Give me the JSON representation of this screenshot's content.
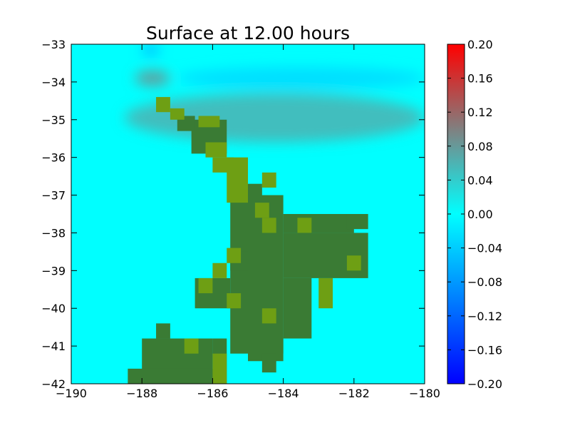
{
  "chart_data": {
    "type": "heatmap",
    "title": "Surface at 12.00 hours",
    "xlabel": "",
    "ylabel": "",
    "xlim": [
      -190,
      -180
    ],
    "ylim": [
      -42,
      -33
    ],
    "x_ticks": [
      "−190",
      "−188",
      "−186",
      "−184",
      "−182",
      "−180"
    ],
    "x_tick_values": [
      -190,
      -188,
      -186,
      -184,
      -182,
      -180
    ],
    "y_ticks": [
      "−33",
      "−34",
      "−35",
      "−36",
      "−37",
      "−38",
      "−39",
      "−40",
      "−41",
      "−42"
    ],
    "y_tick_values": [
      -33,
      -34,
      -35,
      -36,
      -37,
      -38,
      -39,
      -40,
      -41,
      -42
    ],
    "grid": false,
    "colorbar": {
      "range": [
        -0.2,
        0.2
      ],
      "tick_labels": [
        "0.20",
        "0.16",
        "0.12",
        "0.08",
        "0.04",
        "0.00",
        "−0.04",
        "−0.08",
        "−0.12",
        "−0.16",
        "−0.20"
      ],
      "tick_values": [
        0.2,
        0.16,
        0.12,
        0.08,
        0.04,
        0.0,
        -0.04,
        -0.08,
        -0.12,
        -0.16,
        -0.2
      ],
      "colors": [
        "#0000ff",
        "#00ffff",
        "#808080",
        "#ff0000"
      ]
    },
    "field": {
      "background_value": 0.0,
      "bands": [
        {
          "value": -0.03,
          "lon": [
            -187.0,
            -180.0
          ],
          "lat": [
            -34.2,
            -33.6
          ]
        },
        {
          "value": 0.06,
          "lon": [
            -188.5,
            -180.0
          ],
          "lat": [
            -35.6,
            -34.3
          ]
        },
        {
          "value": 0.09,
          "lon": [
            -188.2,
            -187.2
          ],
          "lat": [
            -34.1,
            -33.7
          ]
        },
        {
          "value": -0.06,
          "lon": [
            -188.0,
            -187.5
          ],
          "lat": [
            -33.3,
            -33.0
          ]
        }
      ]
    },
    "land_colors": {
      "land": "#3a7b34",
      "coast": "#6e9f14",
      "edge": "#8bb30a"
    },
    "land_cells": [
      {
        "lon": [
          -185.5,
          -184.0
        ],
        "lat": [
          -41.2,
          -37.0
        ]
      },
      {
        "lon": [
          -184.0,
          -182.0
        ],
        "lat": [
          -38.0,
          -37.5
        ]
      },
      {
        "lon": [
          -184.0,
          -181.6
        ],
        "lat": [
          -39.2,
          -38.0
        ]
      },
      {
        "lon": [
          -184.0,
          -183.2
        ],
        "lat": [
          -40.8,
          -39.2
        ]
      },
      {
        "lon": [
          -182.2,
          -181.6
        ],
        "lat": [
          -37.9,
          -37.5
        ]
      },
      {
        "lon": [
          -185.2,
          -184.6
        ],
        "lat": [
          -37.1,
          -36.7
        ]
      },
      {
        "lon": [
          -186.5,
          -185.5
        ],
        "lat": [
          -40.0,
          -39.2
        ]
      },
      {
        "lon": [
          -185.5,
          -185.0
        ],
        "lat": [
          -39.0,
          -38.5
        ]
      },
      {
        "lon": [
          -185.0,
          -184.0
        ],
        "lat": [
          -41.4,
          -40.8
        ]
      },
      {
        "lon": [
          -184.6,
          -184.2
        ],
        "lat": [
          -41.7,
          -41.2
        ]
      },
      {
        "lon": [
          -188.0,
          -186.0
        ],
        "lat": [
          -41.8,
          -40.8
        ]
      },
      {
        "lon": [
          -188.4,
          -185.6
        ],
        "lat": [
          -42.0,
          -41.6
        ]
      },
      {
        "lon": [
          -187.6,
          -187.2
        ],
        "lat": [
          -40.8,
          -40.4
        ]
      },
      {
        "lon": [
          -186.0,
          -185.6
        ],
        "lat": [
          -41.6,
          -40.8
        ]
      },
      {
        "lon": [
          -186.6,
          -185.6
        ],
        "lat": [
          -35.9,
          -35.0
        ]
      },
      {
        "lon": [
          -187.0,
          -186.5
        ],
        "lat": [
          -35.3,
          -34.9
        ]
      }
    ],
    "coast_cells": [
      {
        "lon": [
          -185.6,
          -185.0
        ],
        "lat": [
          -37.2,
          -36.0
        ]
      },
      {
        "lon": [
          -186.0,
          -185.4
        ],
        "lat": [
          -36.4,
          -36.0
        ]
      },
      {
        "lon": [
          -184.6,
          -184.2
        ],
        "lat": [
          -36.8,
          -36.4
        ]
      },
      {
        "lon": [
          -184.8,
          -184.4
        ],
        "lat": [
          -37.6,
          -37.2
        ]
      },
      {
        "lon": [
          -184.6,
          -184.2
        ],
        "lat": [
          -38.0,
          -37.6
        ]
      },
      {
        "lon": [
          -183.6,
          -183.2
        ],
        "lat": [
          -38.0,
          -37.6
        ]
      },
      {
        "lon": [
          -182.2,
          -181.8
        ],
        "lat": [
          -39.0,
          -38.6
        ]
      },
      {
        "lon": [
          -185.6,
          -185.2
        ],
        "lat": [
          -38.8,
          -38.4
        ]
      },
      {
        "lon": [
          -186.0,
          -185.6
        ],
        "lat": [
          -39.2,
          -38.8
        ]
      },
      {
        "lon": [
          -186.4,
          -186.0
        ],
        "lat": [
          -39.6,
          -39.2
        ]
      },
      {
        "lon": [
          -185.6,
          -185.2
        ],
        "lat": [
          -40.0,
          -39.6
        ]
      },
      {
        "lon": [
          -184.6,
          -184.2
        ],
        "lat": [
          -40.4,
          -40.0
        ]
      },
      {
        "lon": [
          -183.0,
          -182.6
        ],
        "lat": [
          -40.0,
          -39.2
        ]
      },
      {
        "lon": [
          -186.8,
          -186.4
        ],
        "lat": [
          -41.2,
          -40.8
        ]
      },
      {
        "lon": [
          -186.0,
          -185.6
        ],
        "lat": [
          -42.0,
          -41.2
        ]
      },
      {
        "lon": [
          -187.6,
          -187.2
        ],
        "lat": [
          -34.8,
          -34.4
        ]
      },
      {
        "lon": [
          -187.2,
          -186.8
        ],
        "lat": [
          -35.0,
          -34.7
        ]
      },
      {
        "lon": [
          -186.4,
          -185.8
        ],
        "lat": [
          -35.2,
          -34.9
        ]
      },
      {
        "lon": [
          -186.2,
          -185.6
        ],
        "lat": [
          -36.0,
          -35.6
        ]
      }
    ]
  }
}
